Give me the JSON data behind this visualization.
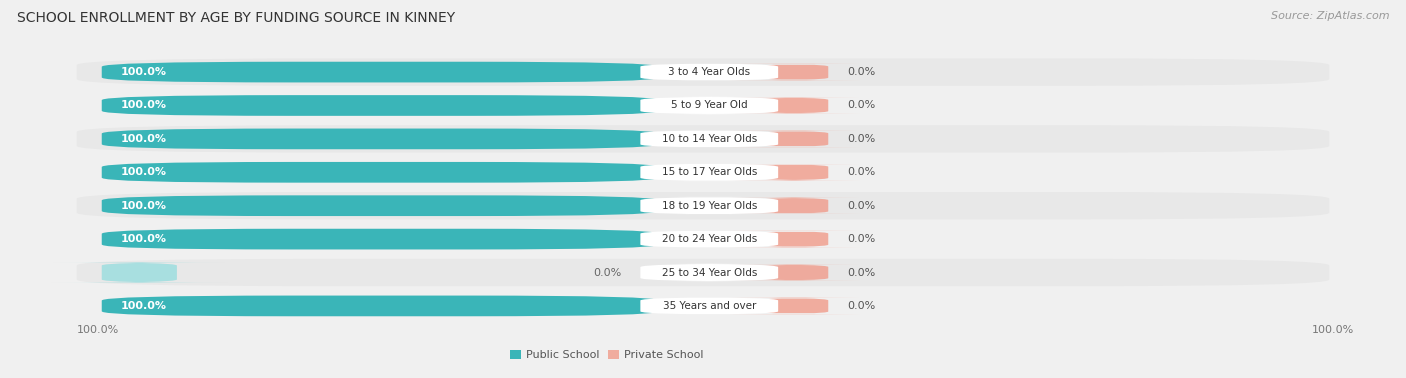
{
  "title": "SCHOOL ENROLLMENT BY AGE BY FUNDING SOURCE IN KINNEY",
  "source": "Source: ZipAtlas.com",
  "categories": [
    "3 to 4 Year Olds",
    "5 to 9 Year Old",
    "10 to 14 Year Olds",
    "15 to 17 Year Olds",
    "18 to 19 Year Olds",
    "20 to 24 Year Olds",
    "25 to 34 Year Olds",
    "35 Years and over"
  ],
  "public_values": [
    100.0,
    100.0,
    100.0,
    100.0,
    100.0,
    100.0,
    0.0,
    100.0
  ],
  "private_values": [
    0.0,
    0.0,
    0.0,
    0.0,
    0.0,
    0.0,
    0.0,
    0.0
  ],
  "public_color": "#3ab5b8",
  "public_color_light": "#a8dfe0",
  "private_color": "#f0a090",
  "row_bg_color": "#e8e8e8",
  "row_bg_alt": "#f2f2f2",
  "white": "#ffffff",
  "public_label": "Public School",
  "private_label": "Private School",
  "title_fontsize": 10,
  "label_fontsize": 8,
  "tick_fontsize": 8,
  "value_fontsize": 8,
  "source_fontsize": 8
}
